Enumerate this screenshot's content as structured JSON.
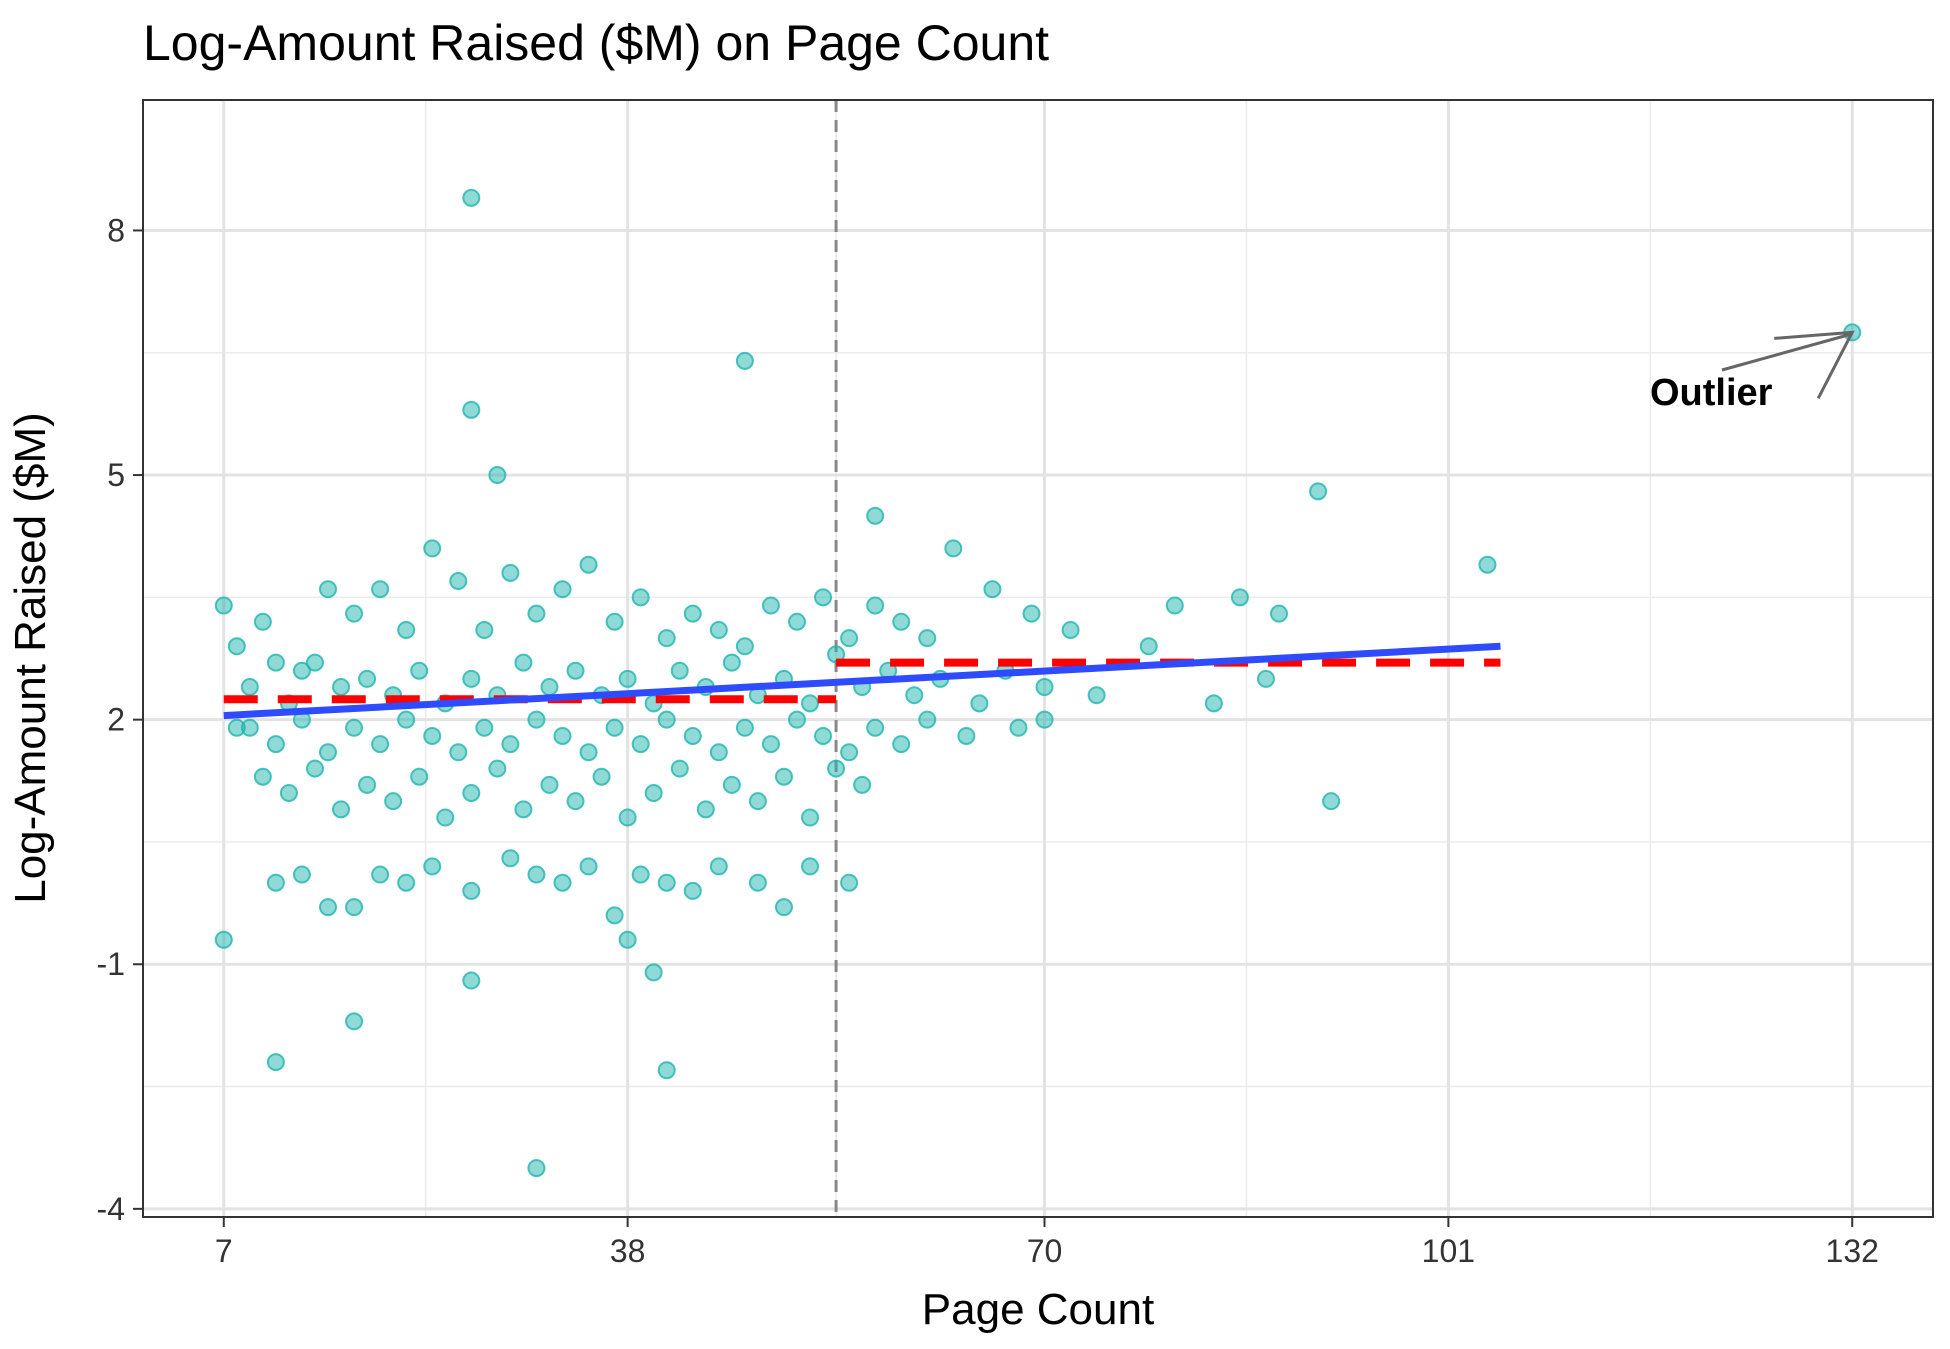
{
  "chart_data": {
    "type": "scatter",
    "title": "Log-Amount Raised ($M) on Page Count",
    "xlabel": "Page Count",
    "ylabel": "Log-Amount Raised ($M)",
    "xlim": [
      0.8,
      138.2
    ],
    "ylim": [
      -4.1,
      9.6
    ],
    "x_ticks": [
      7,
      38,
      70,
      101,
      132
    ],
    "y_ticks": [
      -4,
      -1,
      2,
      5,
      8
    ],
    "grid": true,
    "point_color": "#1fb5ad",
    "fit_line_color": "#2e4bff",
    "step_line_color": "#ff0000",
    "cutoff_line_color": "#888888",
    "cutoff_x": 54,
    "fit_line": {
      "x": [
        7,
        105
      ],
      "y": [
        2.05,
        2.9
      ]
    },
    "step_segments": [
      {
        "x": [
          7,
          54
        ],
        "y": [
          2.25,
          2.25
        ]
      },
      {
        "x": [
          54,
          105
        ],
        "y": [
          2.7,
          2.7
        ]
      }
    ],
    "annotation": {
      "text": "Outlier",
      "x": 132,
      "y": 6.75
    },
    "points": [
      [
        26,
        8.4
      ],
      [
        47,
        6.4
      ],
      [
        26,
        5.8
      ],
      [
        28,
        5.0
      ],
      [
        57,
        4.5
      ],
      [
        63,
        4.1
      ],
      [
        91,
        4.8
      ],
      [
        7,
        3.4
      ],
      [
        10,
        3.2
      ],
      [
        11,
        2.7
      ],
      [
        13,
        2.6
      ],
      [
        15,
        3.6
      ],
      [
        17,
        3.3
      ],
      [
        19,
        3.6
      ],
      [
        21,
        3.1
      ],
      [
        23,
        4.1
      ],
      [
        25,
        3.7
      ],
      [
        27,
        3.1
      ],
      [
        29,
        3.8
      ],
      [
        31,
        3.3
      ],
      [
        33,
        3.6
      ],
      [
        35,
        3.9
      ],
      [
        37,
        3.2
      ],
      [
        39,
        3.5
      ],
      [
        41,
        3.0
      ],
      [
        43,
        3.3
      ],
      [
        45,
        3.1
      ],
      [
        47,
        2.9
      ],
      [
        49,
        3.4
      ],
      [
        51,
        3.2
      ],
      [
        53,
        3.5
      ],
      [
        55,
        3.0
      ],
      [
        57,
        3.4
      ],
      [
        59,
        3.2
      ],
      [
        61,
        3.0
      ],
      [
        66,
        3.6
      ],
      [
        69,
        3.3
      ],
      [
        72,
        3.1
      ],
      [
        80,
        3.4
      ],
      [
        88,
        3.3
      ],
      [
        104,
        3.9
      ],
      [
        85,
        3.5
      ],
      [
        8,
        2.9
      ],
      [
        9,
        2.4
      ],
      [
        12,
        2.2
      ],
      [
        14,
        2.7
      ],
      [
        16,
        2.4
      ],
      [
        18,
        2.5
      ],
      [
        20,
        2.3
      ],
      [
        22,
        2.6
      ],
      [
        24,
        2.2
      ],
      [
        26,
        2.5
      ],
      [
        28,
        2.3
      ],
      [
        30,
        2.7
      ],
      [
        32,
        2.4
      ],
      [
        34,
        2.6
      ],
      [
        36,
        2.3
      ],
      [
        38,
        2.5
      ],
      [
        40,
        2.2
      ],
      [
        42,
        2.6
      ],
      [
        44,
        2.4
      ],
      [
        46,
        2.7
      ],
      [
        48,
        2.3
      ],
      [
        50,
        2.5
      ],
      [
        52,
        2.2
      ],
      [
        54,
        2.8
      ],
      [
        56,
        2.4
      ],
      [
        58,
        2.6
      ],
      [
        60,
        2.3
      ],
      [
        62,
        2.5
      ],
      [
        65,
        2.2
      ],
      [
        67,
        2.6
      ],
      [
        70,
        2.4
      ],
      [
        74,
        2.3
      ],
      [
        78,
        2.9
      ],
      [
        83,
        2.2
      ],
      [
        87,
        2.5
      ],
      [
        9,
        1.9
      ],
      [
        11,
        1.7
      ],
      [
        13,
        2.0
      ],
      [
        15,
        1.6
      ],
      [
        17,
        1.9
      ],
      [
        19,
        1.7
      ],
      [
        21,
        2.0
      ],
      [
        23,
        1.8
      ],
      [
        25,
        1.6
      ],
      [
        27,
        1.9
      ],
      [
        29,
        1.7
      ],
      [
        31,
        2.0
      ],
      [
        33,
        1.8
      ],
      [
        35,
        1.6
      ],
      [
        37,
        1.9
      ],
      [
        39,
        1.7
      ],
      [
        41,
        2.0
      ],
      [
        43,
        1.8
      ],
      [
        45,
        1.6
      ],
      [
        47,
        1.9
      ],
      [
        49,
        1.7
      ],
      [
        51,
        2.0
      ],
      [
        53,
        1.8
      ],
      [
        55,
        1.6
      ],
      [
        57,
        1.9
      ],
      [
        59,
        1.7
      ],
      [
        61,
        2.0
      ],
      [
        64,
        1.8
      ],
      [
        68,
        1.9
      ],
      [
        70,
        2.0
      ],
      [
        8,
        1.9
      ],
      [
        10,
        1.3
      ],
      [
        12,
        1.1
      ],
      [
        14,
        1.4
      ],
      [
        16,
        0.9
      ],
      [
        18,
        1.2
      ],
      [
        20,
        1.0
      ],
      [
        22,
        1.3
      ],
      [
        24,
        0.8
      ],
      [
        26,
        1.1
      ],
      [
        28,
        1.4
      ],
      [
        30,
        0.9
      ],
      [
        32,
        1.2
      ],
      [
        34,
        1.0
      ],
      [
        36,
        1.3
      ],
      [
        38,
        0.8
      ],
      [
        40,
        1.1
      ],
      [
        42,
        1.4
      ],
      [
        44,
        0.9
      ],
      [
        46,
        1.2
      ],
      [
        48,
        1.0
      ],
      [
        50,
        1.3
      ],
      [
        52,
        0.8
      ],
      [
        54,
        1.4
      ],
      [
        56,
        1.2
      ],
      [
        92,
        1.0
      ],
      [
        11,
        0.0
      ],
      [
        13,
        0.1
      ],
      [
        15,
        -0.3
      ],
      [
        17,
        -0.3
      ],
      [
        19,
        0.1
      ],
      [
        21,
        0.0
      ],
      [
        23,
        0.2
      ],
      [
        26,
        -0.1
      ],
      [
        29,
        0.3
      ],
      [
        31,
        0.1
      ],
      [
        33,
        0.0
      ],
      [
        35,
        0.2
      ],
      [
        37,
        -0.4
      ],
      [
        39,
        0.1
      ],
      [
        41,
        0.0
      ],
      [
        43,
        -0.1
      ],
      [
        45,
        0.2
      ],
      [
        48,
        0.0
      ],
      [
        50,
        -0.3
      ],
      [
        52,
        0.2
      ],
      [
        55,
        0.0
      ],
      [
        7,
        -0.7
      ],
      [
        38,
        -0.7
      ],
      [
        40,
        -1.1
      ],
      [
        26,
        -1.2
      ],
      [
        17,
        -1.7
      ],
      [
        11,
        -2.2
      ],
      [
        41,
        -2.3
      ],
      [
        31,
        -3.5
      ],
      [
        132,
        6.75
      ]
    ]
  }
}
